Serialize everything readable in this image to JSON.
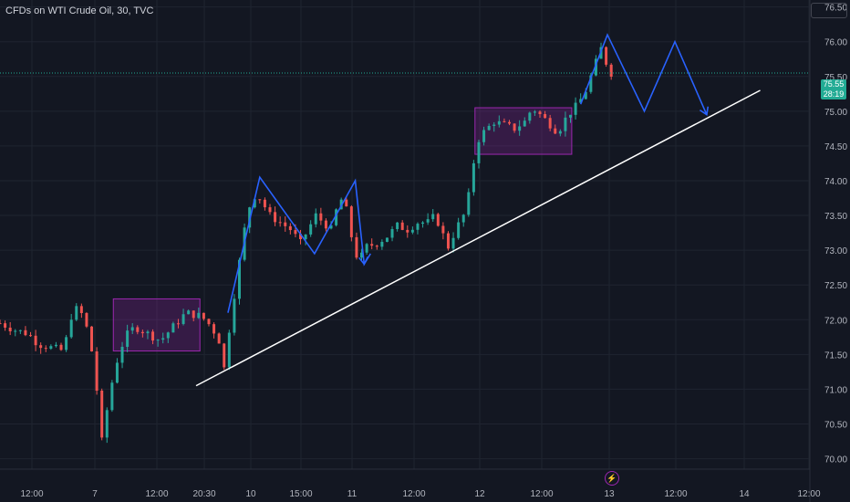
{
  "chart_data": {
    "type": "candlestick",
    "title": "CFDs on WTI Crude Oil, 30, TVC",
    "last_price": "75.55",
    "countdown": "28:19",
    "ylim": [
      69.85,
      76.6
    ],
    "y_ticks": [
      "70.00",
      "70.50",
      "71.00",
      "71.50",
      "72.00",
      "72.50",
      "73.00",
      "73.50",
      "74.00",
      "74.50",
      "75.00",
      "75.50",
      "76.00",
      "76.50"
    ],
    "x_ticks": [
      "12:00",
      "7",
      "12:00",
      "20:30",
      "10",
      "15:00",
      "11",
      "12:00",
      "12",
      "12:00",
      "13",
      "12:00",
      "14",
      "12:00"
    ],
    "colors": {
      "up": "#26a69a",
      "down": "#ef5350",
      "pattern": "#2962ff",
      "trendline": "#ffffff",
      "zone": "#9c27b0"
    },
    "price_path": [
      {
        "x": 0,
        "y": 71.95
      },
      {
        "x": 0.6,
        "y": 71.85
      },
      {
        "x": 1.1,
        "y": 71.8
      },
      {
        "x": 1.5,
        "y": 71.65
      },
      {
        "x": 2.0,
        "y": 71.6
      },
      {
        "x": 2.5,
        "y": 71.55
      },
      {
        "x": 2.8,
        "y": 72.05
      },
      {
        "x": 3.0,
        "y": 72.15
      },
      {
        "x": 3.3,
        "y": 72.05
      },
      {
        "x": 3.6,
        "y": 71.55
      },
      {
        "x": 3.85,
        "y": 70.85
      },
      {
        "x": 4.0,
        "y": 70.25
      },
      {
        "x": 4.2,
        "y": 70.7
      },
      {
        "x": 4.5,
        "y": 71.3
      },
      {
        "x": 4.9,
        "y": 71.75
      },
      {
        "x": 5.3,
        "y": 71.9
      },
      {
        "x": 5.8,
        "y": 71.8
      },
      {
        "x": 6.3,
        "y": 71.7
      },
      {
        "x": 6.8,
        "y": 71.9
      },
      {
        "x": 7.3,
        "y": 72.1
      },
      {
        "x": 7.9,
        "y": 72.05
      },
      {
        "x": 8.3,
        "y": 71.9
      },
      {
        "x": 8.6,
        "y": 71.7
      },
      {
        "x": 8.8,
        "y": 71.3
      },
      {
        "x": 9.05,
        "y": 72.0
      },
      {
        "x": 9.3,
        "y": 72.6
      },
      {
        "x": 9.6,
        "y": 73.3
      },
      {
        "x": 9.9,
        "y": 73.8
      },
      {
        "x": 10.2,
        "y": 73.75
      },
      {
        "x": 10.6,
        "y": 73.5
      },
      {
        "x": 11.0,
        "y": 73.4
      },
      {
        "x": 11.4,
        "y": 73.3
      },
      {
        "x": 11.8,
        "y": 73.1
      },
      {
        "x": 12.1,
        "y": 73.3
      },
      {
        "x": 12.4,
        "y": 73.5
      },
      {
        "x": 12.7,
        "y": 73.4
      },
      {
        "x": 13.0,
        "y": 73.3
      },
      {
        "x": 13.3,
        "y": 73.7
      },
      {
        "x": 13.5,
        "y": 73.75
      },
      {
        "x": 13.7,
        "y": 73.4
      },
      {
        "x": 13.9,
        "y": 73.0
      },
      {
        "x": 14.1,
        "y": 72.85
      },
      {
        "x": 14.4,
        "y": 73.05
      },
      {
        "x": 14.8,
        "y": 73.1
      },
      {
        "x": 15.2,
        "y": 73.2
      },
      {
        "x": 15.6,
        "y": 73.35
      },
      {
        "x": 16.0,
        "y": 73.3
      },
      {
        "x": 16.4,
        "y": 73.4
      },
      {
        "x": 16.8,
        "y": 73.4
      },
      {
        "x": 17.1,
        "y": 73.5
      },
      {
        "x": 17.3,
        "y": 73.3
      },
      {
        "x": 17.6,
        "y": 73.05
      },
      {
        "x": 17.9,
        "y": 73.3
      },
      {
        "x": 18.2,
        "y": 73.5
      },
      {
        "x": 18.45,
        "y": 73.85
      },
      {
        "x": 18.7,
        "y": 74.55
      },
      {
        "x": 19.0,
        "y": 74.7
      },
      {
        "x": 19.4,
        "y": 74.85
      },
      {
        "x": 19.8,
        "y": 74.8
      },
      {
        "x": 20.2,
        "y": 74.75
      },
      {
        "x": 20.6,
        "y": 74.85
      },
      {
        "x": 20.9,
        "y": 75.05
      },
      {
        "x": 21.2,
        "y": 74.95
      },
      {
        "x": 21.5,
        "y": 74.85
      },
      {
        "x": 21.9,
        "y": 74.7
      },
      {
        "x": 22.3,
        "y": 74.95
      },
      {
        "x": 22.7,
        "y": 75.1
      },
      {
        "x": 23.0,
        "y": 75.3
      },
      {
        "x": 23.3,
        "y": 75.6
      },
      {
        "x": 23.6,
        "y": 75.9
      },
      {
        "x": 23.8,
        "y": 75.7
      },
      {
        "x": 24.0,
        "y": 75.55
      }
    ],
    "consolidation_zones": [
      {
        "x0": 4.45,
        "x1": 7.85,
        "y0": 71.55,
        "y1": 72.3
      },
      {
        "x0": 18.65,
        "x1": 22.45,
        "y0": 74.38,
        "y1": 75.05
      }
    ],
    "zigzag_projection": [
      {
        "x": 8.95,
        "y": 72.1
      },
      {
        "x": 10.2,
        "y": 74.05
      },
      {
        "x": 12.35,
        "y": 72.95
      },
      {
        "x": 13.95,
        "y": 74.0
      },
      {
        "x": 14.3,
        "y": 72.8
      },
      {
        "x": 14.55,
        "y": 72.95
      }
    ],
    "future_projection": [
      {
        "x": 22.8,
        "y": 75.1
      },
      {
        "x": 23.85,
        "y": 76.1
      },
      {
        "x": 25.3,
        "y": 75.0
      },
      {
        "x": 26.5,
        "y": 76.0
      },
      {
        "x": 27.75,
        "y": 74.95
      }
    ],
    "trendline": [
      {
        "x": 7.7,
        "y": 71.05
      },
      {
        "x": 29.85,
        "y": 75.3
      }
    ]
  }
}
